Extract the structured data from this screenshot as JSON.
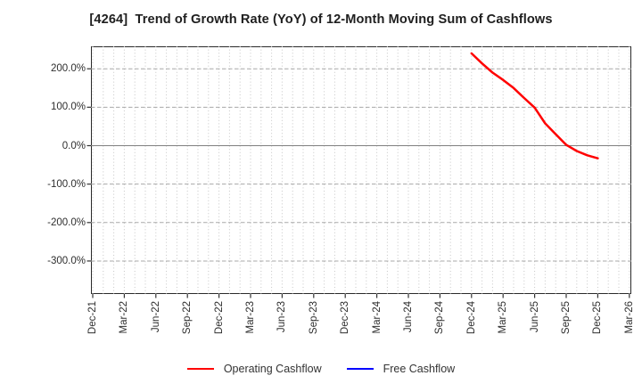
{
  "chart_data": {
    "type": "line",
    "title": "[4264]  Trend of Growth Rate (YoY) of 12-Month Moving Sum of Cashflows",
    "x_axis": {
      "tick_labels": [
        "Dec-21",
        "Mar-22",
        "Jun-22",
        "Sep-22",
        "Dec-22",
        "Mar-23",
        "Jun-23",
        "Sep-23",
        "Dec-23",
        "Mar-24",
        "Jun-24",
        "Sep-24",
        "Dec-24",
        "Mar-25",
        "Jun-25",
        "Sep-25",
        "Dec-25",
        "Mar-26"
      ],
      "months_per_tick": 3,
      "total_months": 52,
      "grid_style": "dotted vertical line every month"
    },
    "y_axis": {
      "tick_labels": [
        "200.0%",
        "100.0%",
        "0.0%",
        "-100.0%",
        "-200.0%",
        "-300.0%"
      ],
      "tick_values": [
        200,
        100,
        0,
        -100,
        -200,
        -300
      ],
      "unit": "%",
      "ylim": [
        -386,
        258
      ],
      "grid_style": "dashed horizontal line at each tick, solid gray line at zero",
      "zero_line": true
    },
    "series": [
      {
        "name": "Operating Cashflow",
        "color": "#ff0000",
        "start_month_label": "Dec-24",
        "start_month_index": 36,
        "monthly_values_pct": [
          240,
          214,
          190,
          171,
          150,
          124,
          99,
          58,
          30,
          2,
          -14,
          -25,
          -33
        ]
      },
      {
        "name": "Free Cashflow",
        "color": "#0000ff",
        "start_month_label": null,
        "start_month_index": null,
        "monthly_values_pct": []
      }
    ],
    "legend": {
      "position": "bottom-center",
      "entries": [
        {
          "label": "Operating Cashflow",
          "color": "#ff0000"
        },
        {
          "label": "Free Cashflow",
          "color": "#0000ff"
        }
      ]
    },
    "colors": {
      "background": "#ffffff",
      "frame": "#2a2a2a",
      "grid_dotted": "#c6c6c6",
      "grid_dashed": "#a8a8a8",
      "zero_line": "#808080",
      "tick_text": "#2e2e2e",
      "title_text": "#1f1f1f"
    }
  }
}
